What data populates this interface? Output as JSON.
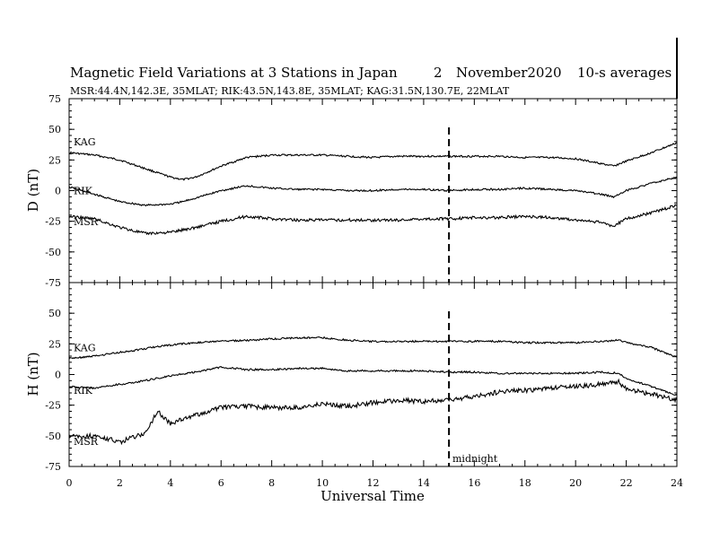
{
  "title": {
    "main": "Magnetic Field Variations at 3 Stations in Japan",
    "day": "2",
    "month_year": "November2020",
    "averaging": "10-s averages"
  },
  "subtitle": "MSR:44.4N,142.3E, 35MLAT;  RIK:43.5N,143.8E, 35MLAT;  KAG:31.5N,130.7E, 22MLAT",
  "annotation": "midnight",
  "chart_data": [
    {
      "type": "line",
      "panel": "D",
      "ylabel": "D (nT)",
      "xlabel": "",
      "xlim": [
        0,
        24
      ],
      "ylim": [
        -75,
        75
      ],
      "yticks": [
        "75",
        "50",
        "25",
        "0",
        "-25",
        "-50",
        "-75"
      ],
      "x": [
        0,
        1,
        2,
        3,
        4,
        4.5,
        5,
        6,
        7,
        8,
        9,
        10,
        11,
        12,
        13,
        14,
        15,
        16,
        17,
        18,
        19,
        20,
        21,
        21.5,
        22,
        23,
        24
      ],
      "series": [
        {
          "name": "KAG",
          "values": [
            31,
            29,
            25,
            18,
            11,
            9,
            11,
            20,
            27,
            29,
            29,
            29,
            28,
            27,
            28,
            28,
            28,
            28,
            28,
            27,
            27,
            26,
            22,
            20,
            24,
            31,
            39
          ]
        },
        {
          "name": "RIK",
          "values": [
            3,
            -3,
            -9,
            -12,
            -11,
            -9,
            -6,
            0,
            4,
            2,
            1,
            1,
            0,
            0,
            1,
            1,
            0,
            1,
            1,
            2,
            1,
            0,
            -3,
            -5,
            0,
            6,
            11
          ]
        },
        {
          "name": "MSR",
          "values": [
            -21,
            -23,
            -30,
            -35,
            -34,
            -32,
            -30,
            -25,
            -21,
            -23,
            -24,
            -24,
            -24,
            -24,
            -24,
            -23,
            -23,
            -22,
            -22,
            -21,
            -22,
            -24,
            -26,
            -29,
            -23,
            -18,
            -12
          ]
        }
      ],
      "station_labels": [
        "KAG",
        "RIK",
        "MSR"
      ],
      "dashed_vertical_at": 15
    },
    {
      "type": "line",
      "panel": "H",
      "ylabel": "H (nT)",
      "xlabel": "Universal Time",
      "xlim": [
        0,
        24
      ],
      "ylim": [
        -75,
        75
      ],
      "yticks": [
        "75",
        "50",
        "25",
        "0",
        "-25",
        "-50",
        "-75"
      ],
      "xticks": [
        "0",
        "2",
        "4",
        "6",
        "8",
        "10",
        "12",
        "14",
        "16",
        "18",
        "20",
        "22",
        "24"
      ],
      "x": [
        0,
        1,
        2,
        3,
        3.5,
        4,
        5,
        6,
        7,
        8,
        9,
        10,
        11,
        12,
        13,
        14,
        15,
        16,
        17,
        18,
        19,
        20,
        21,
        21.7,
        22,
        23,
        24
      ],
      "series": [
        {
          "name": "KAG",
          "values": [
            13,
            15,
            18,
            21,
            23,
            24,
            26,
            27,
            28,
            29,
            30,
            30,
            28,
            27,
            27,
            27,
            27,
            27,
            27,
            26,
            26,
            26,
            27,
            28,
            26,
            22,
            14
          ]
        },
        {
          "name": "RIK",
          "values": [
            -10,
            -11,
            -8,
            -5,
            -3,
            -1,
            2,
            6,
            4,
            4,
            5,
            5,
            3,
            3,
            3,
            3,
            2,
            2,
            1,
            1,
            1,
            1,
            2,
            1,
            -3,
            -10,
            -17
          ]
        },
        {
          "name": "MSR",
          "values": [
            -50,
            -50,
            -55,
            -48,
            -30,
            -40,
            -33,
            -27,
            -26,
            -27,
            -27,
            -24,
            -26,
            -23,
            -21,
            -22,
            -21,
            -18,
            -14,
            -13,
            -11,
            -10,
            -8,
            -6,
            -12,
            -16,
            -21
          ]
        }
      ],
      "station_labels": [
        "KAG",
        "RIK",
        "MSR"
      ],
      "dashed_vertical_at": 15
    }
  ]
}
